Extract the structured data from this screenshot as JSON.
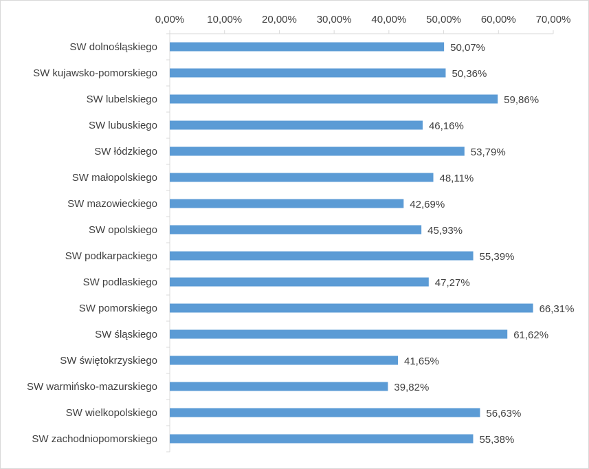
{
  "colors": {
    "bar": "#5b9bd5",
    "axis": "#d9d9d9",
    "text": "#404040"
  },
  "chart_data": {
    "type": "bar",
    "orientation": "horizontal",
    "title": "",
    "xlabel": "",
    "ylabel": "",
    "xlim": [
      0,
      70
    ],
    "x_axis_position": "top",
    "grid": false,
    "legend": "none",
    "ticks": [
      "0,00%",
      "10,00%",
      "20,00%",
      "30,00%",
      "40,00%",
      "50,00%",
      "60,00%",
      "70,00%"
    ],
    "categories": [
      "SW dolnośląskiego",
      "SW kujawsko-pomorskiego",
      "SW lubelskiego",
      "SW lubuskiego",
      "SW łódzkiego",
      "SW małopolskiego",
      "SW mazowieckiego",
      "SW opolskiego",
      "SW podkarpackiego",
      "SW podlaskiego",
      "SW pomorskiego",
      "SW śląskiego",
      "SW świętokrzyskiego",
      "SW warmińsko-mazurskiego",
      "SW wielkopolskiego",
      "SW zachodniopomorskiego"
    ],
    "values": [
      50.07,
      50.36,
      59.86,
      46.16,
      53.79,
      48.11,
      42.69,
      45.93,
      55.39,
      47.27,
      66.31,
      61.62,
      41.65,
      39.82,
      56.63,
      55.38
    ],
    "data_labels": [
      "50,07%",
      "50,36%",
      "59,86%",
      "46,16%",
      "53,79%",
      "48,11%",
      "42,69%",
      "45,93%",
      "55,39%",
      "47,27%",
      "66,31%",
      "61,62%",
      "41,65%",
      "39,82%",
      "56,63%",
      "55,38%"
    ]
  }
}
